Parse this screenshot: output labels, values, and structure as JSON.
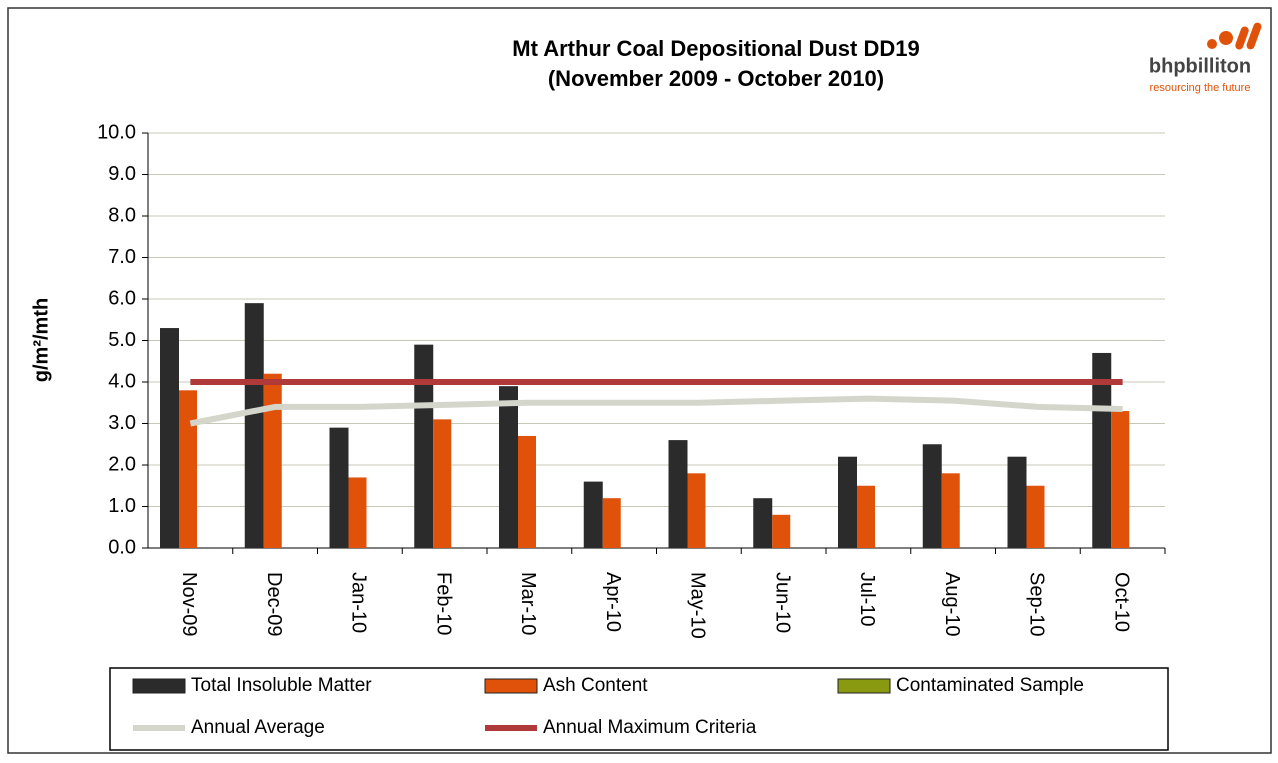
{
  "logo": {
    "name": "bhpbilliton",
    "tagline": "resourcing the future"
  },
  "chart_data": {
    "type": "bar",
    "title": "Mt Arthur Coal Depositional Dust DD19",
    "subtitle": "(November 2009 - October 2010)",
    "y_label": "g/m²/mth",
    "categories": [
      "Nov-09",
      "Dec-09",
      "Jan-10",
      "Feb-10",
      "Mar-10",
      "Apr-10",
      "May-10",
      "Jun-10",
      "Jul-10",
      "Aug-10",
      "Sep-10",
      "Oct-10"
    ],
    "series": [
      {
        "name": "Total Insoluble Matter",
        "kind": "bar",
        "color": "#2b2b2b",
        "values": [
          5.3,
          5.9,
          2.9,
          4.9,
          3.9,
          1.6,
          2.6,
          1.2,
          2.2,
          2.5,
          2.2,
          4.7
        ]
      },
      {
        "name": "Ash Content",
        "kind": "bar",
        "color": "#e0520a",
        "values": [
          3.8,
          4.2,
          1.7,
          3.1,
          2.7,
          1.2,
          1.8,
          0.8,
          1.5,
          1.8,
          1.5,
          3.3
        ]
      },
      {
        "name": "Contaminated Sample",
        "kind": "bar",
        "color": "#8a9a10",
        "values": [
          null,
          null,
          null,
          null,
          null,
          null,
          null,
          null,
          null,
          null,
          null,
          null
        ]
      },
      {
        "name": "Annual Average",
        "kind": "line",
        "color": "#d4d6cc",
        "values": [
          3.0,
          3.4,
          3.4,
          3.45,
          3.5,
          3.5,
          3.5,
          3.55,
          3.6,
          3.55,
          3.4,
          3.35
        ]
      },
      {
        "name": "Annual Maximum Criteria",
        "kind": "line",
        "color": "#b03a3a",
        "values": [
          4,
          4,
          4,
          4,
          4,
          4,
          4,
          4,
          4,
          4,
          4,
          4
        ]
      }
    ],
    "ylim": [
      0,
      10
    ],
    "yticks": [
      {
        "value": 0,
        "label": "0.0"
      },
      {
        "value": 1,
        "label": "1.0"
      },
      {
        "value": 2,
        "label": "2.0"
      },
      {
        "value": 3,
        "label": "3.0"
      },
      {
        "value": 4,
        "label": "4.0"
      },
      {
        "value": 5,
        "label": "5.0"
      },
      {
        "value": 6,
        "label": "6.0"
      },
      {
        "value": 7,
        "label": "7.0"
      },
      {
        "value": 8,
        "label": "8.0"
      },
      {
        "value": 9,
        "label": "9.0"
      },
      {
        "value": 10,
        "label": "10.0"
      }
    ],
    "grid": true
  }
}
